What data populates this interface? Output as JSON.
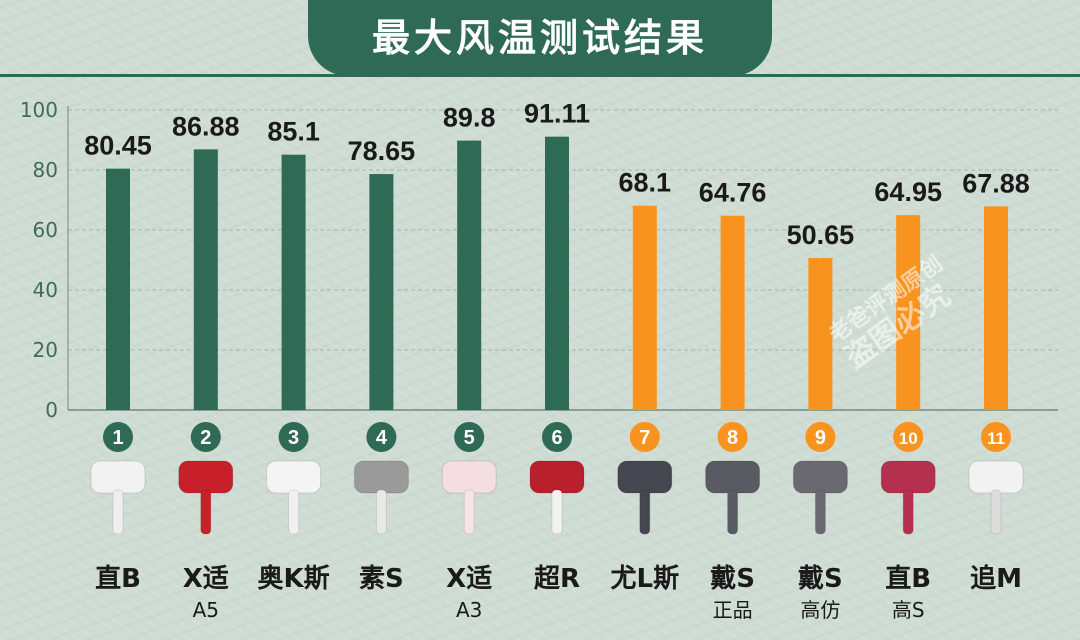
{
  "title": "最大风温测试结果",
  "watermark": {
    "line1": "老爸评测原创",
    "line2": "盗图必究"
  },
  "colors": {
    "title_bg": "#2e6a55",
    "green": "#2e6a55",
    "orange": "#f7931e",
    "grid": "#9db8a8",
    "text": "#1a1a1a",
    "tick_text": "#3f6b5c"
  },
  "chart_data": {
    "type": "bar",
    "title": "最大风温测试结果",
    "ylim": [
      0,
      100
    ],
    "yticks": [
      0,
      20,
      40,
      60,
      80,
      100
    ],
    "grid": true,
    "categories": [
      {
        "number": "1",
        "name": "直B",
        "sub": "",
        "value": 80.45,
        "label": "80.45",
        "color": "green"
      },
      {
        "number": "2",
        "name": "X适",
        "sub": "A5",
        "value": 86.88,
        "label": "86.88",
        "color": "green"
      },
      {
        "number": "3",
        "name": "奥K斯",
        "sub": "",
        "value": 85.1,
        "label": "85.1",
        "color": "green"
      },
      {
        "number": "4",
        "name": "素S",
        "sub": "",
        "value": 78.65,
        "label": "78.65",
        "color": "green"
      },
      {
        "number": "5",
        "name": "X适",
        "sub": "A3",
        "value": 89.8,
        "label": "89.8",
        "color": "green"
      },
      {
        "number": "6",
        "name": "超R",
        "sub": "",
        "value": 91.11,
        "label": "91.11",
        "color": "green"
      },
      {
        "number": "7",
        "name": "尤L斯",
        "sub": "",
        "value": 68.1,
        "label": "68.1",
        "color": "orange"
      },
      {
        "number": "8",
        "name": "戴S",
        "sub": "正品",
        "value": 64.76,
        "label": "64.76",
        "color": "orange"
      },
      {
        "number": "9",
        "name": "戴S",
        "sub": "高仿",
        "value": 50.65,
        "label": "50.65",
        "color": "orange"
      },
      {
        "number": "10",
        "name": "直B",
        "sub": "高S",
        "value": 64.95,
        "label": "64.95",
        "color": "orange"
      },
      {
        "number": "11",
        "name": "追M",
        "sub": "",
        "value": 67.88,
        "label": "67.88",
        "color": "orange"
      }
    ],
    "dryer_icons": [
      {
        "body": "#f2f2f2",
        "handle": "#eeeeee"
      },
      {
        "body": "#c8202a",
        "handle": "#c8202a"
      },
      {
        "body": "#f4f4f4",
        "handle": "#f0f0f0"
      },
      {
        "body": "#9a9a9a",
        "handle": "#e8e8e8"
      },
      {
        "body": "#f4dde3",
        "handle": "#f4e4e8"
      },
      {
        "body": "#b9202c",
        "handle": "#f2f2f2"
      },
      {
        "body": "#444650",
        "handle": "#444650"
      },
      {
        "body": "#5a5a62",
        "handle": "#5a5a62"
      },
      {
        "body": "#6a6870",
        "handle": "#6a6870"
      },
      {
        "body": "#b5304f",
        "handle": "#b5304f"
      },
      {
        "body": "#f2f2f2",
        "handle": "#dcdcdc"
      }
    ]
  }
}
